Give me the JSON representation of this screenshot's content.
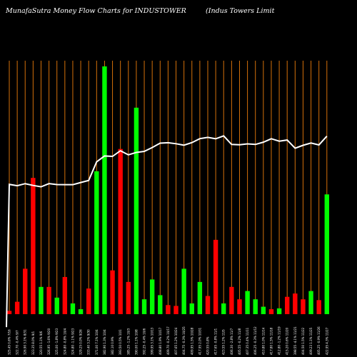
{
  "chart_data": {
    "type": "bar",
    "title": "MunafaSutra  Money Flow  Charts for INDUSTOWER",
    "subtitle": "(Indus Towers Limit",
    "xlabel": "",
    "ylabel": "",
    "grid": true,
    "colors": {
      "background": "#000000",
      "grid": "#d4700a",
      "up": "#00ff00",
      "down": "#ff0000",
      "line": "#ffffff"
    },
    "categories": [
      "325.45 0.6% 7/16",
      "322.70 -0.4% 9/7",
      "326.90 3.1% 8/31",
      "323.35 8.0% 9/1",
      "320.55 1.1% 9/6",
      "326.95 -1.6% 9/20",
      "325.00 -1.8% 9/23",
      "324.80 -0.8% 10/4",
      "324.80 -1.1% 9/23",
      "329.25 0.0% 9/26",
      "333.40 3.2% 9/30",
      "371.00 7.1% 10/4",
      "382.90 1.3% 10/4",
      "382.10 0.9%",
      "393.50 0.5% 10/1",
      "385.25 -1.2% 10/3",
      "390.00 1.1% 10/8",
      "392.25 -0.4% 10/6",
      "399.95 3.1% 10/13",
      "408.80 1.9% 10/17",
      "409.70 -0.2% 10/17",
      "407.65 1.2% 10/24",
      "404.75 -0.3% 10/25",
      "409.95 1.5% 10/28",
      "417.95 2.0% 10/31",
      "420.55 0.8%",
      "417.65 -0.8% 11/1",
      "423.55 1.2% 11/5",
      "406.30 -2.8% 11/7",
      "405.55 -0.2% 11/8",
      "407.35 0.4% 11/11",
      "406.25 -0.3% 11/12",
      "410.80 1.0% 11/14",
      "417.80 1.5% 11/18",
      "412.80 -1.2% 11/19",
      "415.20 0.6% 11/20",
      "398.55 -4.1% 11/21",
      "404.50 1.5% 11/22",
      "409.23 1.1% 11/25",
      "405.25 -0.9% 11/26",
      "422.95 4.3% 11/27"
    ],
    "series": [
      {
        "values": [
          4,
          15,
          55,
          165,
          33,
          33,
          20,
          45,
          13,
          6,
          31,
          173,
          300,
          53,
          200,
          39,
          250,
          18,
          42,
          23,
          11,
          10,
          55,
          13,
          39,
          22,
          90,
          13,
          33,
          18,
          28,
          18,
          9,
          6,
          7,
          21,
          25,
          18,
          28,
          17,
          145
        ],
        "directions": [
          "down",
          "down",
          "down",
          "down",
          "up",
          "down",
          "up",
          "down",
          "up",
          "up",
          "down",
          "up",
          "up",
          "down",
          "down",
          "down",
          "up",
          "up",
          "up",
          "up",
          "down",
          "down",
          "up",
          "up",
          "up",
          "down",
          "down",
          "up",
          "down",
          "down",
          "up",
          "up",
          "up",
          "down",
          "up",
          "down",
          "down",
          "down",
          "up",
          "down",
          "up"
        ]
      },
      {
        "values": [
          325.45,
          322.7,
          326.9,
          323.35,
          320.55,
          326.95,
          325.0,
          324.8,
          324.8,
          329.25,
          333.4,
          371.0,
          382.9,
          382.1,
          393.5,
          385.25,
          390.0,
          392.25,
          399.95,
          408.8,
          409.7,
          407.65,
          404.75,
          409.95,
          417.95,
          420.55,
          417.65,
          423.55,
          406.3,
          405.55,
          407.35,
          406.25,
          410.8,
          417.8,
          412.8,
          415.2,
          398.55,
          404.5,
          409.23,
          405.25,
          422.95
        ]
      }
    ]
  }
}
